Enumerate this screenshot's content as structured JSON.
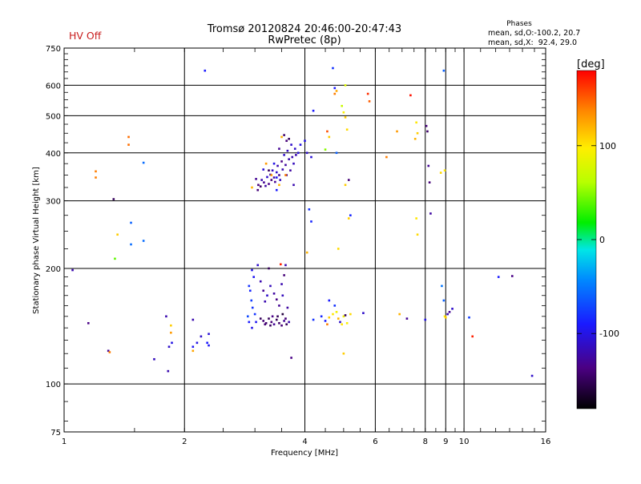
{
  "header": {
    "status_label": "HV Off",
    "status_color": "#c81e1e",
    "title_line1": "Tromsø 20120824 20:46:00-20:47:43",
    "title_line2": "RwPretec (8p)",
    "stats_title": "Phases",
    "stats_line1": "mean, sd,O:-100.2, 20.7",
    "stats_line2": "mean, sd,X:  92.4, 29.0"
  },
  "colorbar": {
    "label": "[deg]",
    "ticks": [
      "100",
      "0",
      "-100"
    ],
    "tick_values": [
      100,
      0,
      -100
    ],
    "range": [
      -180,
      180
    ]
  },
  "chart_data": {
    "type": "scatter",
    "title": "Tromsø 20120824 20:46:00-20:47:43",
    "subtitle": "RwPretec (8p)",
    "xlabel": "Frequency [MHz]",
    "ylabel": "Stationary phase Virtual Height [km]",
    "x_scale": "log",
    "y_scale": "log",
    "xlim": [
      1,
      16
    ],
    "ylim": [
      75,
      750
    ],
    "x_ticks": [
      1,
      2,
      4,
      6,
      8,
      9,
      10,
      16
    ],
    "x_tick_labels": [
      "1",
      "2",
      "4",
      "6",
      "8",
      "9",
      "10",
      "16"
    ],
    "y_ticks": [
      75,
      100,
      200,
      300,
      400,
      500,
      600,
      750
    ],
    "y_tick_labels": [
      "75",
      "100",
      "200",
      "300",
      "400",
      "500",
      "600",
      "750"
    ],
    "x_grid": [
      2,
      4,
      6,
      8,
      9,
      10,
      16
    ],
    "y_grid": [
      100,
      200,
      300,
      400,
      500,
      600,
      750
    ],
    "grid": true,
    "point_fields": [
      "frequency_mhz",
      "height_km",
      "phase_deg"
    ],
    "points": [
      [
        2.25,
        655,
        -90
      ],
      [
        3.02,
        342,
        -130
      ],
      [
        3.06,
        330,
        -140
      ],
      [
        3.1,
        327,
        -145
      ],
      [
        3.12,
        340,
        -120
      ],
      [
        3.16,
        335,
        -130
      ],
      [
        3.19,
        328,
        -125
      ],
      [
        3.22,
        346,
        -110
      ],
      [
        3.25,
        332,
        -135
      ],
      [
        3.28,
        351,
        -120
      ],
      [
        3.3,
        340,
        -140
      ],
      [
        3.32,
        360,
        -115
      ],
      [
        3.35,
        345,
        -125
      ],
      [
        3.37,
        336,
        -130
      ],
      [
        3.4,
        356,
        -110
      ],
      [
        3.42,
        370,
        -120
      ],
      [
        3.45,
        350,
        -130
      ],
      [
        3.47,
        340,
        -115
      ],
      [
        3.5,
        380,
        -135
      ],
      [
        3.52,
        362,
        -120
      ],
      [
        3.55,
        395,
        -110
      ],
      [
        3.58,
        372,
        -125
      ],
      [
        3.6,
        350,
        -130
      ],
      [
        3.62,
        405,
        -115
      ],
      [
        3.65,
        385,
        -120
      ],
      [
        3.68,
        360,
        -125
      ],
      [
        3.7,
        420,
        -110
      ],
      [
        3.72,
        390,
        -120
      ],
      [
        3.75,
        375,
        -115
      ],
      [
        3.78,
        410,
        -110
      ],
      [
        3.8,
        395,
        -120
      ],
      [
        3.85,
        400,
        -105
      ],
      [
        3.9,
        420,
        -100
      ],
      [
        4.0,
        430,
        -100
      ],
      [
        4.05,
        400,
        -110
      ],
      [
        3.55,
        445,
        -145
      ],
      [
        3.6,
        430,
        -140
      ],
      [
        3.65,
        435,
        -150
      ],
      [
        3.45,
        410,
        -130
      ],
      [
        3.25,
        360,
        -150
      ],
      [
        3.05,
        320,
        -140
      ],
      [
        3.4,
        345,
        -95
      ],
      [
        3.15,
        362,
        -105
      ],
      [
        3.35,
        375,
        -100
      ],
      [
        3.2,
        375,
        130
      ],
      [
        3.3,
        350,
        130
      ],
      [
        3.5,
        440,
        120
      ],
      [
        3.45,
        330,
        120
      ],
      [
        3.58,
        350,
        140
      ],
      [
        3.4,
        320,
        -90
      ],
      [
        2.95,
        325,
        120
      ],
      [
        3.75,
        330,
        -120
      ],
      [
        4.15,
        390,
        -105
      ],
      [
        4.1,
        285,
        -80
      ],
      [
        4.15,
        265,
        -85
      ],
      [
        4.2,
        515,
        -90
      ],
      [
        4.55,
        455,
        155
      ],
      [
        4.6,
        440,
        110
      ],
      [
        4.5,
        408,
        50
      ],
      [
        4.8,
        400,
        -60
      ],
      [
        4.7,
        665,
        -80
      ],
      [
        4.75,
        590,
        -90
      ],
      [
        4.8,
        580,
        125
      ],
      [
        4.75,
        570,
        140
      ],
      [
        4.95,
        530,
        70
      ],
      [
        5.0,
        510,
        95
      ],
      [
        5.05,
        495,
        110
      ],
      [
        5.1,
        460,
        105
      ],
      [
        5.15,
        340,
        -140
      ],
      [
        5.05,
        330,
        110
      ],
      [
        5.2,
        275,
        -85
      ],
      [
        5.15,
        270,
        110
      ],
      [
        4.85,
        225,
        105
      ],
      [
        5.05,
        600,
        80
      ],
      [
        6.4,
        390,
        140
      ],
      [
        5.75,
        570,
        165
      ],
      [
        5.8,
        545,
        150
      ],
      [
        7.35,
        565,
        175
      ],
      [
        6.8,
        455,
        130
      ],
      [
        7.6,
        480,
        100
      ],
      [
        7.65,
        450,
        110
      ],
      [
        7.55,
        435,
        120
      ],
      [
        7.6,
        270,
        100
      ],
      [
        7.65,
        245,
        105
      ],
      [
        8.05,
        470,
        -140
      ],
      [
        8.1,
        455,
        -145
      ],
      [
        8.15,
        370,
        -130
      ],
      [
        8.2,
        335,
        -140
      ],
      [
        8.25,
        278,
        -125
      ],
      [
        8.75,
        355,
        105
      ],
      [
        8.95,
        360,
        100
      ],
      [
        8.9,
        655,
        -60
      ],
      [
        1.2,
        358,
        140
      ],
      [
        1.2,
        345,
        140
      ],
      [
        1.45,
        440,
        145
      ],
      [
        1.45,
        420,
        145
      ],
      [
        1.33,
        303,
        -150
      ],
      [
        1.58,
        377,
        -55
      ],
      [
        1.47,
        263,
        -60
      ],
      [
        1.36,
        245,
        110
      ],
      [
        1.47,
        231,
        -55
      ],
      [
        1.34,
        212,
        40
      ],
      [
        1.58,
        236,
        -55
      ],
      [
        1.05,
        198,
        -120
      ],
      [
        1.15,
        144,
        -135
      ],
      [
        1.29,
        122,
        -130
      ],
      [
        1.3,
        121,
        140
      ],
      [
        1.68,
        116,
        -115
      ],
      [
        1.8,
        150,
        -120
      ],
      [
        1.85,
        142,
        110
      ],
      [
        1.85,
        136,
        130
      ],
      [
        1.83,
        125,
        -110
      ],
      [
        1.86,
        128,
        -100
      ],
      [
        1.82,
        108,
        -120
      ],
      [
        2.1,
        147,
        -120
      ],
      [
        2.1,
        125,
        -95
      ],
      [
        2.1,
        122,
        125
      ],
      [
        2.15,
        128,
        -100
      ],
      [
        2.2,
        133,
        -110
      ],
      [
        2.3,
        135,
        -105
      ],
      [
        2.28,
        128,
        -90
      ],
      [
        2.3,
        126,
        -95
      ],
      [
        2.95,
        198,
        -100
      ],
      [
        2.98,
        190,
        -95
      ],
      [
        2.9,
        180,
        -80
      ],
      [
        2.92,
        175,
        -85
      ],
      [
        2.94,
        165,
        -75
      ],
      [
        2.96,
        158,
        -80
      ],
      [
        3.0,
        152,
        -80
      ],
      [
        2.88,
        150,
        -70
      ],
      [
        2.9,
        145,
        -90
      ],
      [
        2.95,
        140,
        -100
      ],
      [
        3.02,
        145,
        -95
      ],
      [
        3.05,
        204,
        -110
      ],
      [
        3.1,
        185,
        -120
      ],
      [
        3.15,
        175,
        -130
      ],
      [
        3.18,
        164,
        -120
      ],
      [
        3.22,
        170,
        -110
      ],
      [
        3.28,
        180,
        -115
      ],
      [
        3.25,
        200,
        -150
      ],
      [
        3.35,
        172,
        -125
      ],
      [
        3.4,
        166,
        -135
      ],
      [
        3.45,
        160,
        -130
      ],
      [
        3.5,
        182,
        -120
      ],
      [
        3.52,
        170,
        -115
      ],
      [
        3.55,
        192,
        -140
      ],
      [
        3.58,
        204,
        -120
      ],
      [
        3.48,
        205,
        170
      ],
      [
        3.62,
        158,
        -125
      ],
      [
        3.1,
        148,
        -150
      ],
      [
        3.15,
        146,
        -140
      ],
      [
        3.2,
        144,
        -145
      ],
      [
        3.25,
        148,
        -150
      ],
      [
        3.3,
        145,
        -140
      ],
      [
        3.35,
        143,
        -130
      ],
      [
        3.4,
        147,
        -150
      ],
      [
        3.45,
        144,
        -145
      ],
      [
        3.5,
        142,
        -140
      ],
      [
        3.55,
        146,
        -130
      ],
      [
        3.6,
        143,
        -150
      ],
      [
        3.65,
        145,
        -120
      ],
      [
        3.32,
        150,
        -135
      ],
      [
        3.28,
        142,
        -150
      ],
      [
        3.42,
        150,
        -150
      ],
      [
        3.58,
        148,
        -140
      ],
      [
        3.18,
        143,
        -140
      ],
      [
        3.52,
        152,
        -160
      ],
      [
        3.7,
        117,
        -135
      ],
      [
        4.05,
        220,
        120
      ],
      [
        4.2,
        147,
        -80
      ],
      [
        4.4,
        150,
        -85
      ],
      [
        4.5,
        146,
        -90
      ],
      [
        4.55,
        143,
        140
      ],
      [
        4.6,
        149,
        110
      ],
      [
        4.7,
        152,
        100
      ],
      [
        4.8,
        154,
        90
      ],
      [
        4.85,
        148,
        120
      ],
      [
        4.9,
        145,
        -110
      ],
      [
        4.95,
        143,
        100
      ],
      [
        5.0,
        150,
        90
      ],
      [
        5.1,
        144,
        95
      ],
      [
        5.2,
        152,
        105
      ],
      [
        4.75,
        160,
        -80
      ],
      [
        4.6,
        165,
        -90
      ],
      [
        5.05,
        151,
        -150
      ],
      [
        5.0,
        120,
        110
      ],
      [
        5.6,
        153,
        -110
      ],
      [
        6.9,
        152,
        120
      ],
      [
        7.2,
        148,
        -130
      ],
      [
        8.0,
        147,
        -100
      ],
      [
        8.8,
        180,
        -50
      ],
      [
        8.9,
        165,
        -60
      ],
      [
        8.95,
        150,
        100
      ],
      [
        9.0,
        149,
        110
      ],
      [
        9.1,
        152,
        -120
      ],
      [
        9.2,
        154,
        -130
      ],
      [
        9.35,
        157,
        -110
      ],
      [
        10.3,
        149,
        -75
      ],
      [
        10.5,
        133,
        170
      ],
      [
        12.2,
        190,
        -90
      ],
      [
        13.2,
        191,
        -135
      ],
      [
        14.8,
        105,
        -110
      ]
    ]
  }
}
